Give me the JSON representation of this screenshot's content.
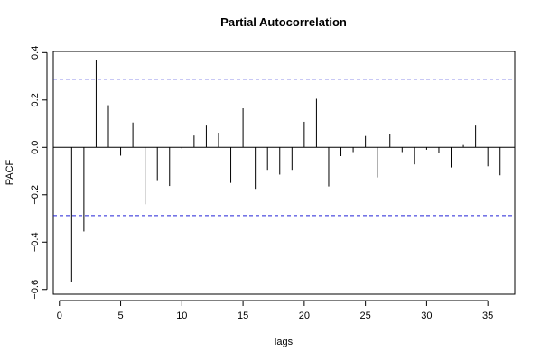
{
  "chart_data": {
    "type": "bar",
    "title": "Partial Autocorrelation",
    "xlabel": "lags",
    "ylabel": "PACF",
    "xlim": [
      -0.5,
      37.2
    ],
    "ylim": [
      -0.62,
      0.405
    ],
    "x_ticks": [
      0,
      5,
      10,
      15,
      20,
      25,
      30,
      35
    ],
    "y_ticks": [
      -0.6,
      -0.4,
      -0.2,
      0.0,
      0.2,
      0.4
    ],
    "y_tick_labels": [
      "−0.6",
      "−0.4",
      "−0.2",
      "0.0",
      "0.2",
      "0.4"
    ],
    "confidence_bounds": [
      0.288,
      -0.288
    ],
    "lags": [
      1,
      2,
      3,
      4,
      5,
      6,
      7,
      8,
      9,
      10,
      11,
      12,
      13,
      14,
      15,
      16,
      17,
      18,
      19,
      20,
      21,
      22,
      23,
      24,
      25,
      26,
      27,
      28,
      29,
      30,
      31,
      32,
      33,
      34,
      35,
      36
    ],
    "values": [
      -0.57,
      -0.355,
      0.37,
      0.178,
      -0.035,
      0.105,
      -0.24,
      -0.142,
      -0.163,
      -0.005,
      0.05,
      0.092,
      0.062,
      -0.15,
      0.165,
      -0.175,
      -0.095,
      -0.115,
      -0.095,
      0.108,
      0.205,
      -0.165,
      -0.037,
      -0.02,
      0.048,
      -0.127,
      0.057,
      -0.02,
      -0.072,
      -0.01,
      -0.023,
      -0.085,
      0.01,
      0.092,
      -0.08,
      -0.118
    ],
    "grid": false,
    "colors": {
      "bars": "#000000",
      "confidence_lines": "#2323d8"
    }
  }
}
